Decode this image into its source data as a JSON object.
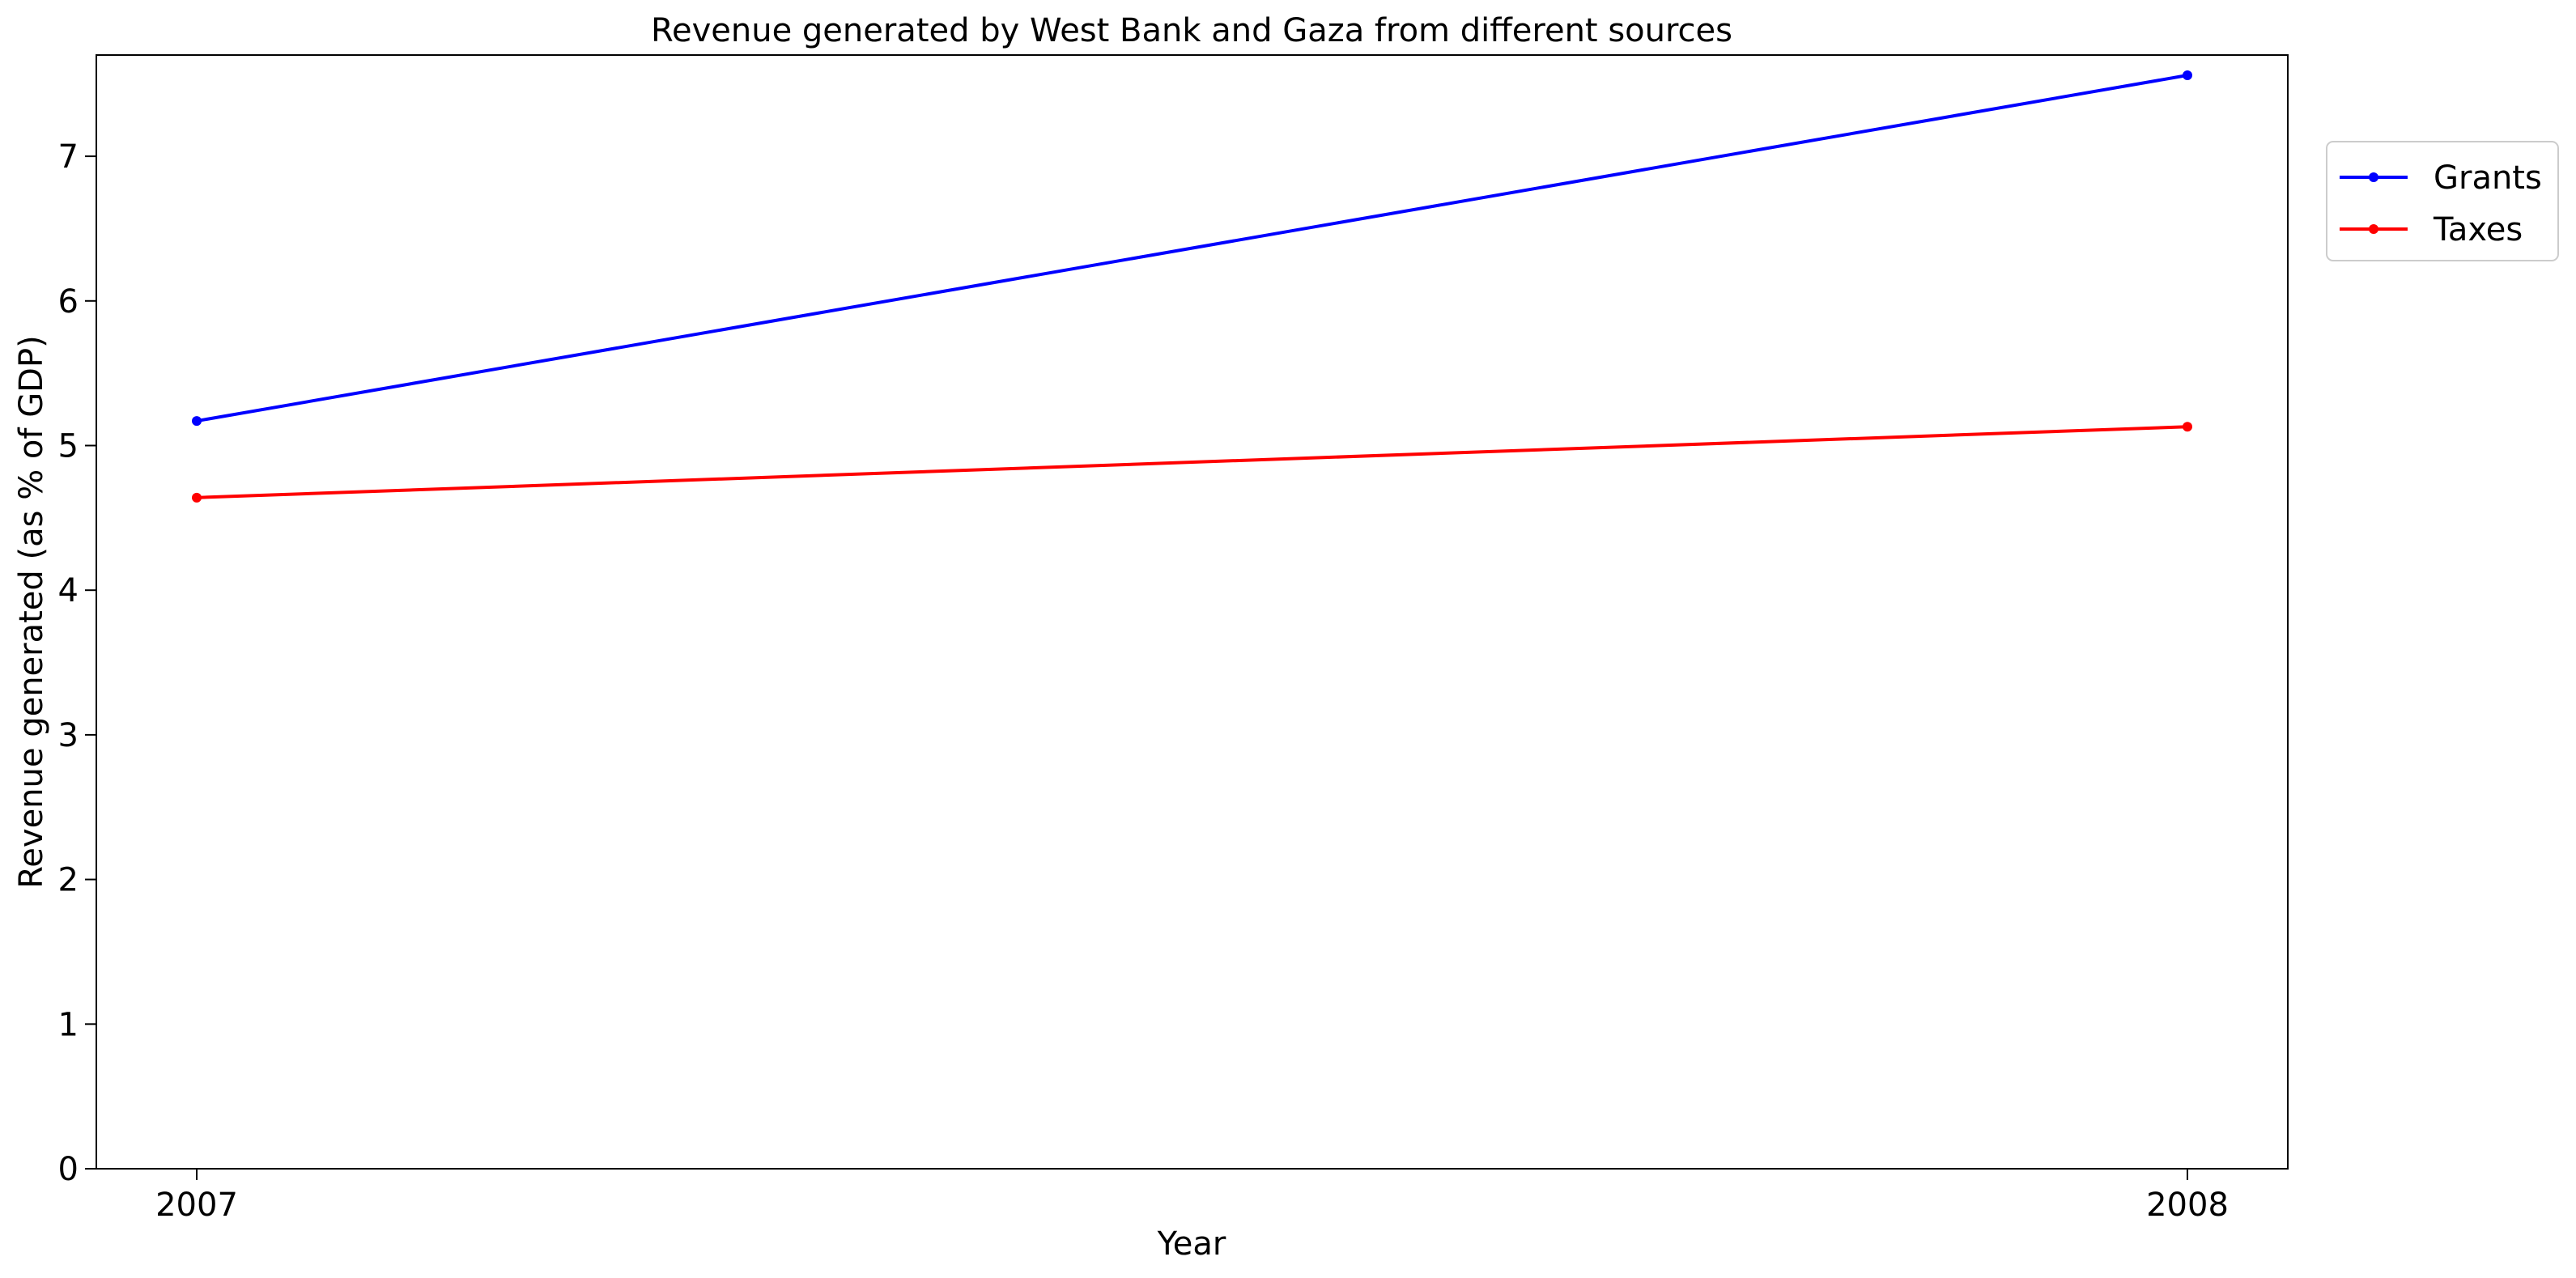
{
  "chart_data": {
    "type": "line",
    "title": "Revenue generated by West Bank and Gaza from different sources",
    "xlabel": "Year",
    "ylabel": "Revenue generated (as % of GDP)",
    "categories": [
      "2007",
      "2008"
    ],
    "ylim": [
      0,
      7.7
    ],
    "yticks": [
      0,
      1,
      2,
      3,
      4,
      5,
      6,
      7
    ],
    "grid": false,
    "legend_position": "upper-right-outside",
    "series": [
      {
        "name": "Grants",
        "color": "#0000ff",
        "values": [
          5.17,
          7.56
        ]
      },
      {
        "name": "Taxes",
        "color": "#ff0000",
        "values": [
          4.64,
          5.13
        ]
      }
    ]
  }
}
